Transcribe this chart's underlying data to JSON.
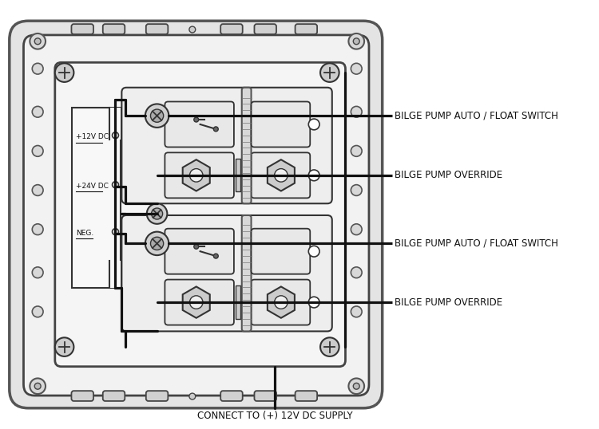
{
  "bg_color": "#ffffff",
  "outer_panel_fc": "#e8e8e8",
  "outer_panel_ec": "#444444",
  "inner_panel_fc": "#f0f0f0",
  "inner_panel_ec": "#333333",
  "board_fc": "#f8f8f8",
  "board_ec": "#333333",
  "lc": "#111111",
  "labels": {
    "l1": "BILGE PUMP AUTO / FLOAT SWITCH",
    "l2": "BILGE PUMP OVERRIDE",
    "l3": "BILGE PUMP AUTO / FLOAT SWITCH",
    "l4": "BILGE PUMP OVERRIDE",
    "l5": "CONNECT TO (+) 12V DC SUPPLY",
    "v12": "+12V DC",
    "v24": "+24V DC",
    "neg": "NEG."
  },
  "wire_lw": 2.2,
  "label_fontsize": 8.5,
  "small_fontsize": 7.0
}
